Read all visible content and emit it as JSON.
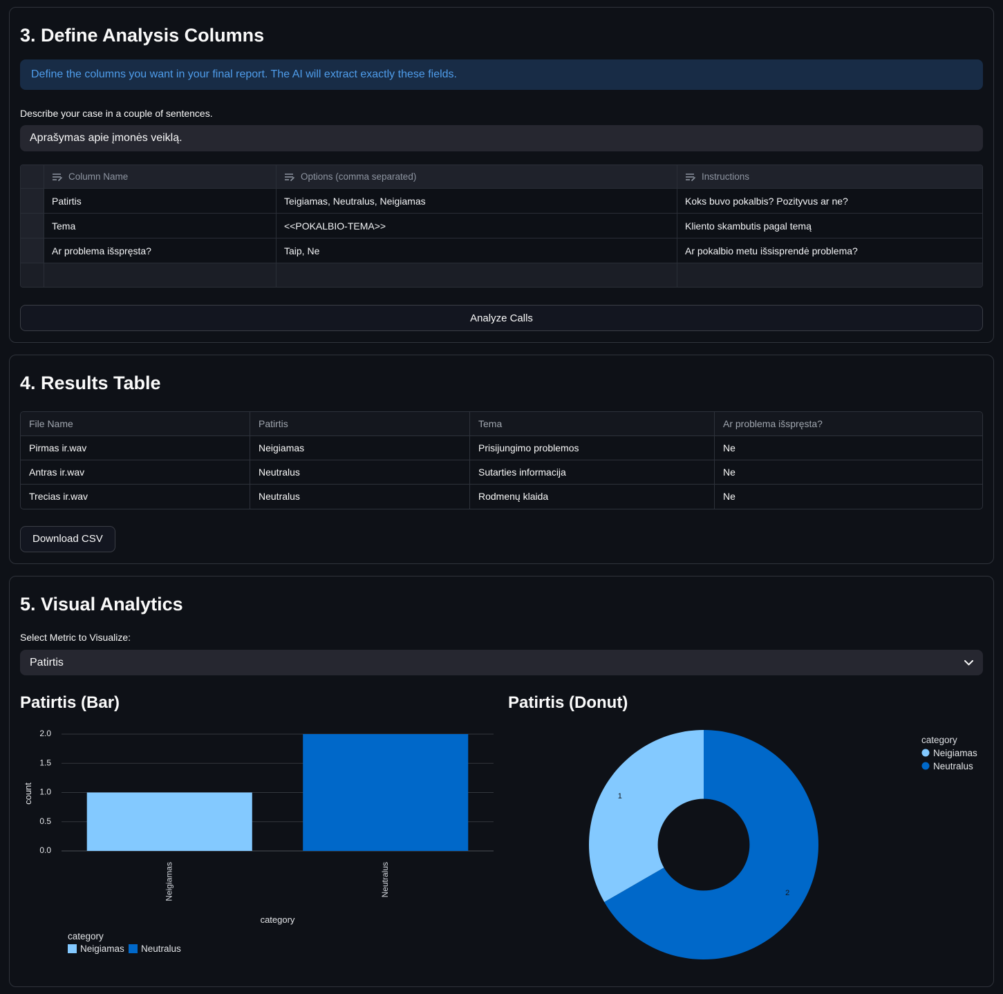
{
  "icons": {
    "text-column-icon": "≡",
    "chevron-down-icon": "⌄"
  },
  "theme": {
    "background": "#0e1117",
    "secondary_background": "#262730",
    "info_background": "#182c46",
    "info_text": "#4f9deb",
    "accent_light_blue": "#83c9ff",
    "accent_blue": "#0068c9"
  },
  "sections": {
    "define": {
      "title": "3. Define Analysis Columns",
      "info": "Define the columns you want in your final report. The AI will extract exactly these fields.",
      "case_label": "Describe your case in a couple of sentences.",
      "case_value": "Aprašymas apie įmonės veiklą.",
      "editor": {
        "columns": [
          "Column Name",
          "Options (comma separated)",
          "Instructions"
        ],
        "rows": [
          [
            "Patirtis",
            "Teigiamas, Neutralus, Neigiamas",
            "Koks buvo pokalbis? Pozityvus ar ne?"
          ],
          [
            "Tema",
            "<<POKALBIO-TEMA>>",
            "Kliento skambutis pagal temą"
          ],
          [
            "Ar problema išspręsta?",
            "Taip, Ne",
            "Ar pokalbio metu išsisprendė problema?"
          ]
        ]
      },
      "analyze_button": "Analyze Calls"
    },
    "results": {
      "title": "4. Results Table",
      "table": {
        "columns": [
          "File Name",
          "Patirtis",
          "Tema",
          "Ar problema išspręsta?"
        ],
        "rows": [
          [
            "Pirmas ir.wav",
            "Neigiamas",
            "Prisijungimo problemos",
            "Ne"
          ],
          [
            "Antras ir.wav",
            "Neutralus",
            "Sutarties informacija",
            "Ne"
          ],
          [
            "Trecias ir.wav",
            "Neutralus",
            "Rodmenų klaida",
            "Ne"
          ]
        ]
      },
      "download_button": "Download CSV"
    },
    "visual": {
      "title": "5. Visual Analytics",
      "metric_label": "Select Metric to Visualize:",
      "metric_value": "Patirtis"
    }
  },
  "chart_data": [
    {
      "type": "bar",
      "title": "Patirtis (Bar)",
      "categories": [
        "Neigiamas",
        "Neutralus"
      ],
      "values": [
        1,
        2
      ],
      "colors": [
        "#83c9ff",
        "#0068c9"
      ],
      "xlabel": "category",
      "ylabel": "count",
      "ylim": [
        0,
        2
      ],
      "yticks": [
        0,
        0.5,
        1,
        1.5,
        2
      ],
      "grid": true,
      "legend_title": "category",
      "legend_position": "bottom-left"
    },
    {
      "type": "pie",
      "title": "Patirtis (Donut)",
      "categories": [
        "Neigiamas",
        "Neutralus"
      ],
      "values": [
        1,
        2
      ],
      "slice_labels": [
        "1",
        "2"
      ],
      "colors": [
        "#83c9ff",
        "#0068c9"
      ],
      "inner_radius_ratio": 0.4,
      "legend_title": "category",
      "legend_position": "right"
    }
  ]
}
